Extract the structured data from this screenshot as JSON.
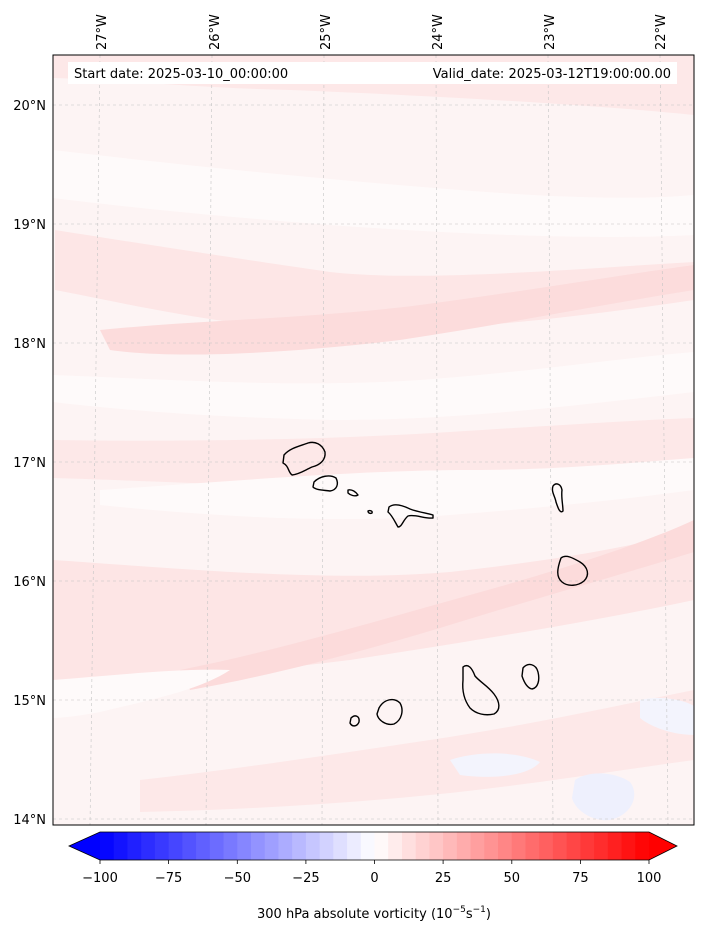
{
  "map": {
    "header": {
      "start_date": "Start date: 2025-03-10_00:00:00",
      "valid_date": "Valid_date: 2025-03-12T19:00:00.00"
    },
    "longitude_labels": [
      "27°W",
      "26°W",
      "25°W",
      "24°W",
      "23°W",
      "22°W"
    ],
    "latitude_labels": [
      "20°N",
      "19°N",
      "18°N",
      "17°N",
      "16°N",
      "15°N",
      "14°N"
    ],
    "gridlines": true,
    "region": "Cape Verde islands",
    "colors": {
      "background": "#fdf4f4",
      "band_light": "#fde9e9",
      "band_medium": "#fcdede",
      "band_pale": "#fefafa",
      "negative_patch": "#eef0fd",
      "coastline": "#000000",
      "frame": "#000000",
      "grid": "#bbbbbb"
    }
  },
  "colorbar": {
    "label_main": "300 hPa absolute vorticity (10",
    "label_sup1": "−5",
    "label_mid": "s",
    "label_sup2": "−1",
    "label_close": ")",
    "ticks": [
      "−100",
      "−75",
      "−50",
      "−25",
      "0",
      "25",
      "50",
      "75",
      "100"
    ],
    "range": [
      -100,
      100
    ],
    "extend": "both",
    "colormap": "bwr"
  }
}
